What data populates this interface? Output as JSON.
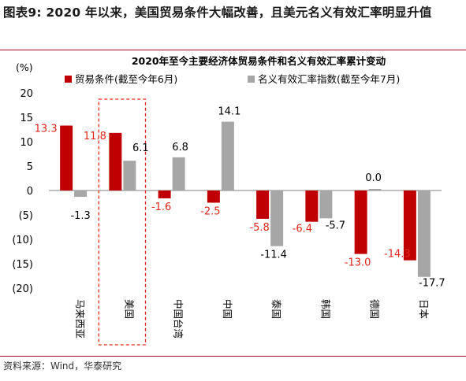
{
  "figure_title": "图表9: 2020 年以来，美国贸易条件大幅改善，且美元名义有效汇率明显升值",
  "source": "资料来源：Wind，华泰研究",
  "colors": {
    "red": "#c00000",
    "gray": "#a6a6a6",
    "label_red": "#e0261b",
    "highlight_box": "#e0261b",
    "rule": "#a50021"
  },
  "chart_data": {
    "type": "bar",
    "title": "2020年至今主要经济体贸易条件和名义有效汇率累计变动",
    "unit_label": "(%)",
    "categories": [
      "马来西亚",
      "美国",
      "中国台湾",
      "中国",
      "泰国",
      "韩国",
      "德国",
      "日本"
    ],
    "series": [
      {
        "name": "贸易条件(截至今年6月)",
        "color": "#c00000",
        "label_color": "#e0261b",
        "values": [
          13.3,
          11.8,
          -1.6,
          -2.5,
          -5.8,
          -6.4,
          -13.0,
          -14.3
        ],
        "labels": [
          "13.3",
          "11.8",
          "-1.6",
          "-2.5",
          "-5.8",
          "-6.4",
          "-13.0",
          "-14.3"
        ]
      },
      {
        "name": "名义有效汇率指数(截至今年7月)",
        "color": "#a6a6a6",
        "label_color": "#000000",
        "values": [
          -1.3,
          6.1,
          6.8,
          14.1,
          -11.4,
          -5.7,
          0.0,
          -17.7
        ],
        "labels": [
          "-1.3",
          "6.1",
          "6.8",
          "14.1",
          "-11.4",
          "-5.7",
          "0.0",
          "-17.7"
        ]
      }
    ],
    "ylim": [
      -20,
      20
    ],
    "yticks": [
      20,
      15,
      10,
      5,
      0,
      -5,
      -10,
      -15,
      -20
    ],
    "ytick_labels": [
      "20",
      "15",
      "10",
      "5",
      "0",
      "(5)",
      "(10)",
      "(15)",
      "(20)"
    ],
    "highlighted_category": "美国",
    "legend_position": "top-left",
    "grid": false
  }
}
